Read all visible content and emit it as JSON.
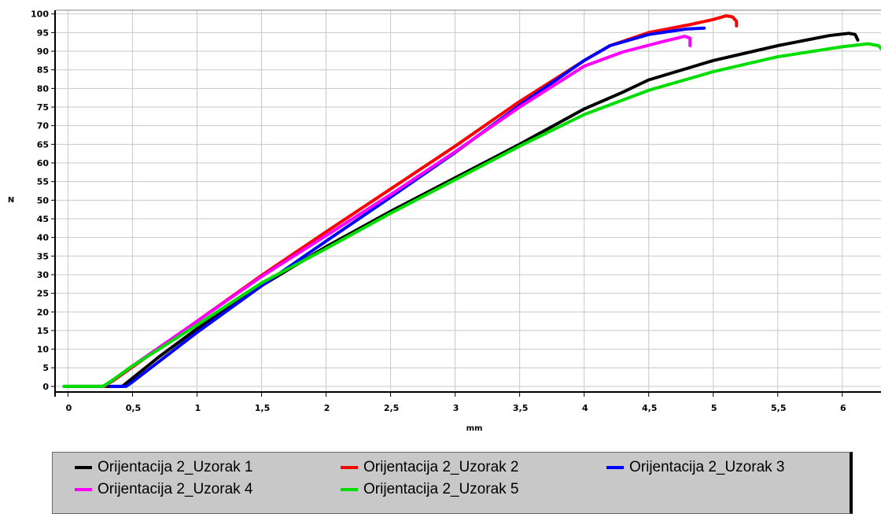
{
  "chart_data": {
    "type": "line",
    "title": "",
    "xlabel": "mm",
    "ylabel": "N",
    "xlim": [
      -0.1,
      6.3
    ],
    "ylim": [
      -1.5,
      101
    ],
    "grid": true,
    "legend_position": "bottom",
    "x_ticks": [
      {
        "value": 0,
        "label": "0"
      },
      {
        "value": 0.5,
        "label": "0,5"
      },
      {
        "value": 1,
        "label": "1"
      },
      {
        "value": 1.5,
        "label": "1,5"
      },
      {
        "value": 2,
        "label": "2"
      },
      {
        "value": 2.5,
        "label": "2,5"
      },
      {
        "value": 3,
        "label": "3"
      },
      {
        "value": 3.5,
        "label": "3,5"
      },
      {
        "value": 4,
        "label": "4"
      },
      {
        "value": 4.5,
        "label": "4,5"
      },
      {
        "value": 5,
        "label": "5"
      },
      {
        "value": 5.5,
        "label": "5,5"
      },
      {
        "value": 6,
        "label": "6"
      }
    ],
    "y_ticks": [
      {
        "value": 0,
        "label": "0"
      },
      {
        "value": 5,
        "label": "5"
      },
      {
        "value": 10,
        "label": "10"
      },
      {
        "value": 15,
        "label": "15"
      },
      {
        "value": 20,
        "label": "20"
      },
      {
        "value": 25,
        "label": "25"
      },
      {
        "value": 30,
        "label": "30"
      },
      {
        "value": 35,
        "label": "35"
      },
      {
        "value": 40,
        "label": "40"
      },
      {
        "value": 45,
        "label": "45"
      },
      {
        "value": 50,
        "label": "50"
      },
      {
        "value": 55,
        "label": "55"
      },
      {
        "value": 60,
        "label": "60"
      },
      {
        "value": 65,
        "label": "65"
      },
      {
        "value": 70,
        "label": "70"
      },
      {
        "value": 75,
        "label": "75"
      },
      {
        "value": 80,
        "label": "80"
      },
      {
        "value": 85,
        "label": "85"
      },
      {
        "value": 90,
        "label": "90"
      },
      {
        "value": 95,
        "label": "95"
      },
      {
        "value": 100,
        "label": "100"
      }
    ],
    "series": [
      {
        "name": "Orijentacija 2_Uzorak 1",
        "color": "#000000",
        "points": [
          [
            -0.03,
            0
          ],
          [
            0.3,
            0
          ],
          [
            0.42,
            0
          ],
          [
            0.5,
            2.2
          ],
          [
            0.7,
            7.8
          ],
          [
            1,
            15.5
          ],
          [
            1.5,
            27
          ],
          [
            2,
            37.5
          ],
          [
            2.5,
            47
          ],
          [
            3,
            56
          ],
          [
            3.5,
            65
          ],
          [
            4,
            74.5
          ],
          [
            4.3,
            79
          ],
          [
            4.5,
            82.3
          ],
          [
            5,
            87.5
          ],
          [
            5.5,
            91.5
          ],
          [
            5.9,
            94.2
          ],
          [
            6.05,
            94.8
          ],
          [
            6.1,
            94.5
          ],
          [
            6.12,
            93
          ]
        ]
      },
      {
        "name": "Orijentacija 2_Uzorak 2",
        "color": "#ff0000",
        "points": [
          [
            0.27,
            0
          ],
          [
            0.35,
            1.5
          ],
          [
            0.5,
            5.2
          ],
          [
            1,
            17.5
          ],
          [
            1.5,
            29.8
          ],
          [
            2,
            41.5
          ],
          [
            2.5,
            53
          ],
          [
            3,
            64.5
          ],
          [
            3.5,
            76.5
          ],
          [
            4,
            87.5
          ],
          [
            4.2,
            91.5
          ],
          [
            4.5,
            95
          ],
          [
            4.8,
            97
          ],
          [
            5,
            98.5
          ],
          [
            5.1,
            99.5
          ],
          [
            5.15,
            99.2
          ],
          [
            5.18,
            98
          ],
          [
            5.18,
            96.8
          ]
        ]
      },
      {
        "name": "Orijentacija 2_Uzorak 3",
        "color": "#0000ff",
        "points": [
          [
            0.33,
            0
          ],
          [
            0.45,
            0
          ],
          [
            0.5,
            1.2
          ],
          [
            1,
            14.5
          ],
          [
            1.5,
            27
          ],
          [
            2,
            39
          ],
          [
            2.5,
            50.8
          ],
          [
            3,
            62.8
          ],
          [
            3.5,
            75.5
          ],
          [
            4,
            87.5
          ],
          [
            4.2,
            91.5
          ],
          [
            4.5,
            94.5
          ],
          [
            4.8,
            96
          ],
          [
            4.93,
            96.2
          ]
        ]
      },
      {
        "name": "Orijentacija 2_Uzorak 4",
        "color": "#ff00ff",
        "points": [
          [
            0.28,
            0
          ],
          [
            0.4,
            3
          ],
          [
            0.5,
            5.5
          ],
          [
            1,
            17.5
          ],
          [
            1.5,
            29.5
          ],
          [
            2,
            40.5
          ],
          [
            2.5,
            51.5
          ],
          [
            3,
            63
          ],
          [
            3.5,
            75
          ],
          [
            4,
            86
          ],
          [
            4.3,
            89.8
          ],
          [
            4.6,
            92.5
          ],
          [
            4.78,
            94
          ],
          [
            4.82,
            93.5
          ],
          [
            4.82,
            91.5
          ]
        ]
      },
      {
        "name": "Orijentacija 2_Uzorak 5",
        "color": "#00dd00",
        "points": [
          [
            -0.03,
            0
          ],
          [
            0.27,
            0
          ],
          [
            0.35,
            1.8
          ],
          [
            0.5,
            5.5
          ],
          [
            1,
            16.5
          ],
          [
            1.5,
            27.8
          ],
          [
            2,
            37
          ],
          [
            2.5,
            46.5
          ],
          [
            3,
            55.5
          ],
          [
            3.5,
            64.5
          ],
          [
            4,
            73
          ],
          [
            4.5,
            79.5
          ],
          [
            5,
            84.5
          ],
          [
            5.5,
            88.5
          ],
          [
            6,
            91.2
          ],
          [
            6.2,
            92
          ],
          [
            6.28,
            91.5
          ],
          [
            6.32,
            90
          ]
        ]
      }
    ]
  }
}
